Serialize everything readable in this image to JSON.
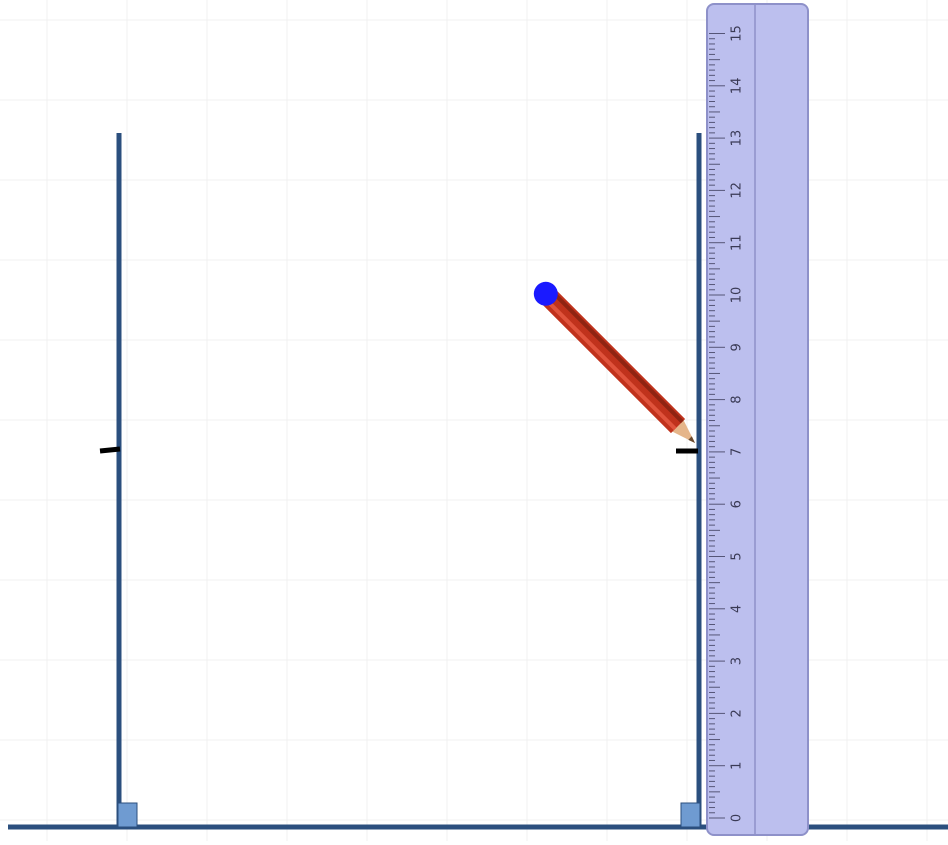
{
  "canvas": {
    "background": "#ffffff",
    "grid_color": "#f0f0f0",
    "line_color": "#2b4f7e"
  },
  "tools": [
    {
      "name": "ruler",
      "icon": "ruler-icon",
      "fill": "#bcbfee",
      "border": "#8e91c9",
      "scale": {
        "min": 0,
        "max": 15,
        "labels": [
          "0",
          "1",
          "2",
          "3",
          "4",
          "5",
          "6",
          "7",
          "8",
          "9",
          "10",
          "11",
          "12",
          "13",
          "14",
          "15"
        ]
      }
    },
    {
      "name": "pencil",
      "icon": "pencil-icon",
      "body_color": "#c0321c",
      "eraser_color": "#1a1aff"
    }
  ],
  "figure": {
    "marks_at": 7,
    "mark_color": "#000000",
    "right_angle_marker_color": "#6f9bd1"
  }
}
